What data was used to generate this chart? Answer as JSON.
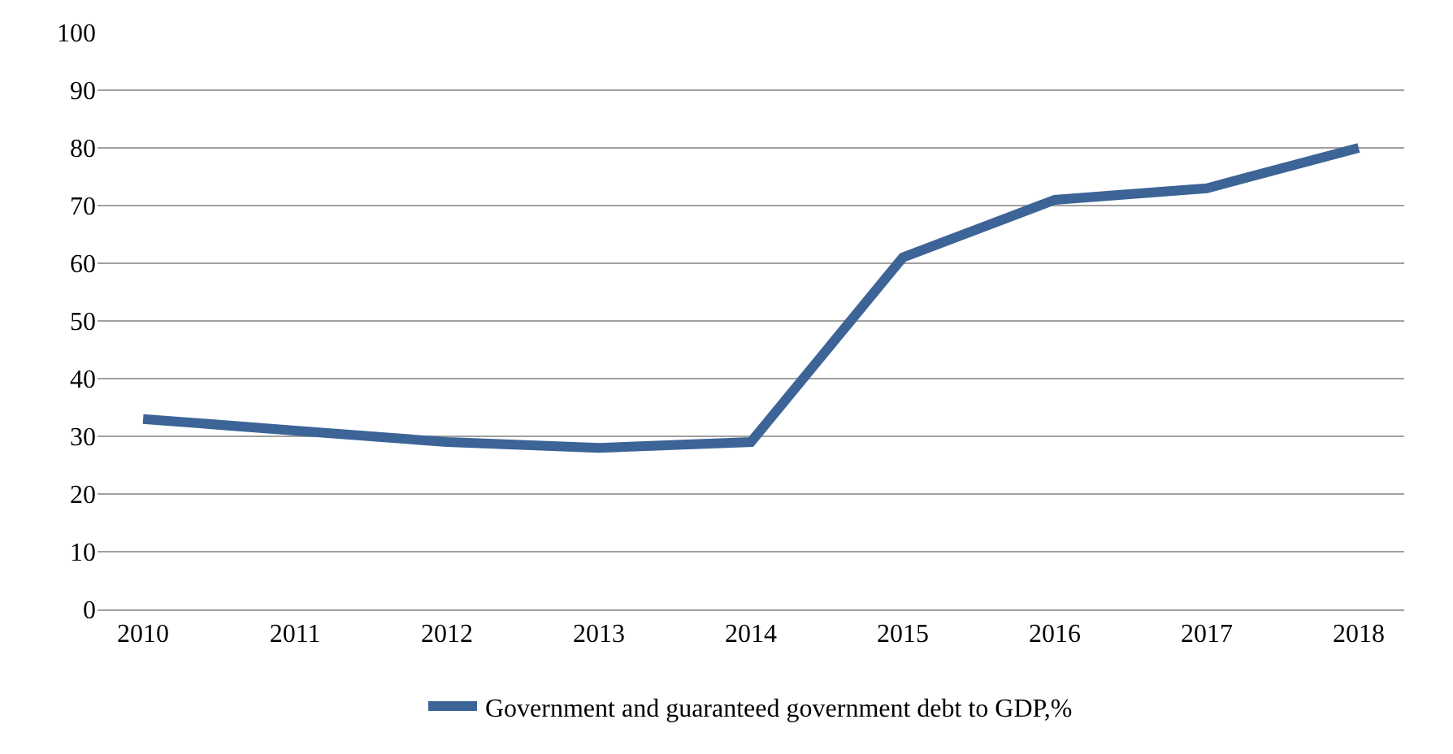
{
  "chart_data": {
    "type": "line",
    "categories": [
      "2010",
      "2011",
      "2012",
      "2013",
      "2014",
      "2015",
      "2016",
      "2017",
      "2018"
    ],
    "series": [
      {
        "name": "Government and guaranteed government debt to GDP,%",
        "color": "#3c6496",
        "values": [
          33,
          31,
          29,
          28,
          29,
          61,
          71,
          73,
          80
        ]
      }
    ],
    "ylim": [
      0,
      100
    ],
    "yticks": [
      0,
      10,
      20,
      30,
      40,
      50,
      60,
      70,
      80,
      90,
      100
    ],
    "grid": "y",
    "legend": "bottom",
    "marker": "none",
    "line_style": "solid"
  }
}
